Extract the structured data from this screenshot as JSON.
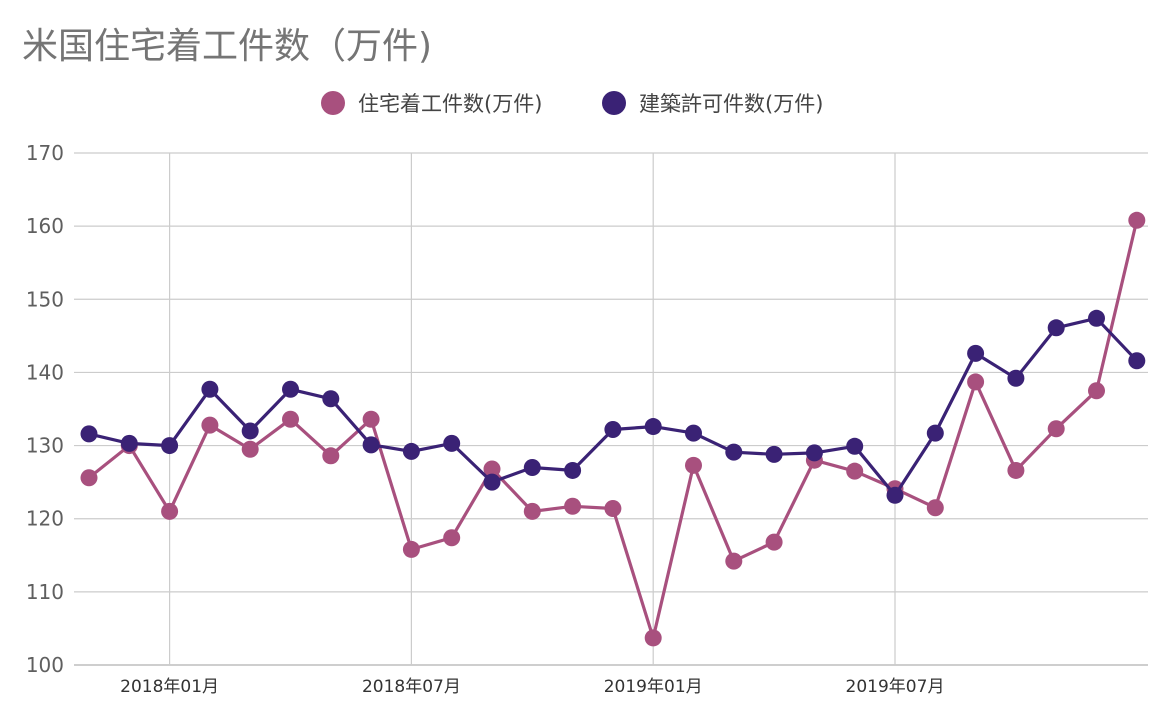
{
  "colors": {
    "series1": "#a8507e",
    "series2": "#3a2275",
    "grid": "#cccccc"
  },
  "chart_data": {
    "type": "line",
    "title": "米国住宅着工件数（万件)",
    "legend_position": "top",
    "grid": true,
    "ylim": [
      100,
      170
    ],
    "y_ticks": [
      "100",
      "110",
      "120",
      "130",
      "140",
      "150",
      "160",
      "170"
    ],
    "x_tick_labels": [
      "2018年01月",
      "2018年07月",
      "2019年01月",
      "2019年07月"
    ],
    "x": [
      "2017-11",
      "2017-12",
      "2018-01",
      "2018-02",
      "2018-03",
      "2018-04",
      "2018-05",
      "2018-06",
      "2018-07",
      "2018-08",
      "2018-09",
      "2018-10",
      "2018-11",
      "2018-12",
      "2019-01",
      "2019-02",
      "2019-03",
      "2019-04",
      "2019-05",
      "2019-06",
      "2019-07",
      "2019-08",
      "2019-09",
      "2019-10",
      "2019-11",
      "2019-12",
      "2020-01"
    ],
    "series": [
      {
        "name": "住宅着工件数(万件)",
        "values": [
          125.6,
          130.0,
          121.0,
          132.8,
          129.5,
          133.6,
          128.6,
          133.6,
          115.8,
          117.4,
          126.8,
          121.0,
          121.7,
          121.4,
          103.7,
          127.3,
          114.2,
          116.8,
          128.0,
          126.5,
          124.1,
          121.5,
          138.7,
          126.6,
          132.3,
          137.5,
          160.8
        ]
      },
      {
        "name": "建築許可件数(万件)",
        "values": [
          131.6,
          130.3,
          130.0,
          137.7,
          132.0,
          137.7,
          136.4,
          130.1,
          129.2,
          130.3,
          125.0,
          127.0,
          126.6,
          132.2,
          132.6,
          131.7,
          129.1,
          128.8,
          129.0,
          129.9,
          123.2,
          131.7,
          142.6,
          139.2,
          146.1,
          147.4,
          141.6
        ]
      }
    ]
  }
}
